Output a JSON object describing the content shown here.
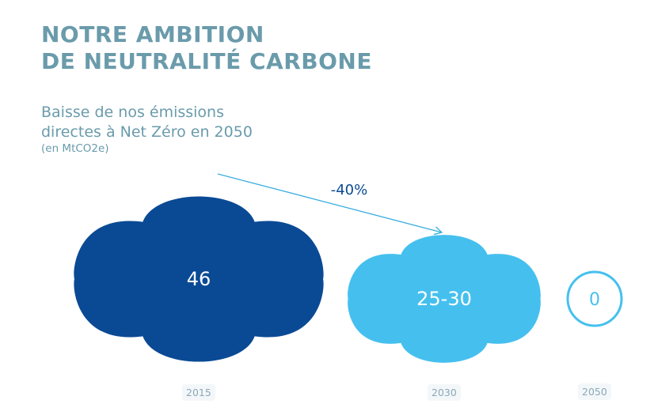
{
  "title": {
    "line1": "NOTRE AMBITION",
    "line2": "DE NEUTRALITÉ CARBONE"
  },
  "subtitle": {
    "line1": "Baisse de nos émissions",
    "line2": "directes à Net Zéro en 2050",
    "unit": "(en MtCO2e)"
  },
  "colors": {
    "title": "#6a9bab",
    "dark_blue": "#0a4a95",
    "light_blue": "#45c0ee",
    "arrow": "#3aaee0",
    "arrow_label": "#0a4a95",
    "year_label": "#8aa8b8"
  },
  "chart_data": {
    "type": "bubble",
    "title": "Baisse de nos émissions directes à Net Zéro en 2050",
    "unit": "MtCO2e",
    "categories": [
      "2015",
      "2030",
      "2050"
    ],
    "values": [
      46,
      27.5,
      0
    ],
    "value_labels": [
      "46",
      "25-30",
      "0"
    ],
    "ranges": [
      [
        46,
        46
      ],
      [
        25,
        30
      ],
      [
        0,
        0
      ]
    ],
    "styles": [
      "filled-dark",
      "filled-light",
      "outline-light"
    ],
    "annotations": [
      {
        "type": "arrow",
        "from": "2015",
        "to": "2030",
        "label": "-40%"
      }
    ]
  }
}
